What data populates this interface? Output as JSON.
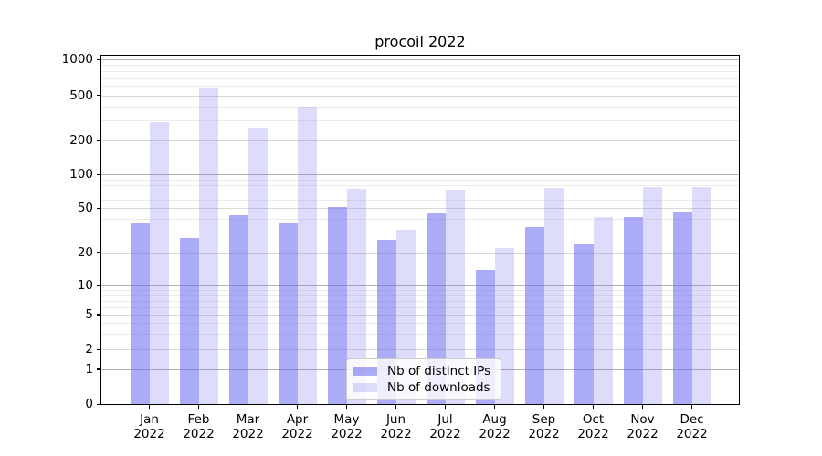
{
  "chart_data": {
    "type": "bar",
    "title": "procoil 2022",
    "categories": [
      "Jan",
      "Feb",
      "Mar",
      "Apr",
      "May",
      "Jun",
      "Jul",
      "Aug",
      "Sep",
      "Oct",
      "Nov",
      "Dec"
    ],
    "year": "2022",
    "series": [
      {
        "name": "Nb of distinct IPs",
        "fill": "rgba(102,102,238,0.55)",
        "solid_hex": "#aaaaf5",
        "values": [
          37,
          27,
          43,
          37,
          51,
          26,
          45,
          14,
          34,
          24,
          42,
          46
        ]
      },
      {
        "name": "Nb of downloads",
        "fill": "rgba(102,102,238,0.22)",
        "solid_hex": "#dcdcfa",
        "values": [
          290,
          580,
          260,
          400,
          75,
          32,
          73,
          22,
          76,
          42,
          78,
          78
        ]
      }
    ],
    "yscale": "symlog",
    "ytick_values": [
      0,
      1,
      2,
      5,
      10,
      20,
      50,
      100,
      200,
      500,
      1000
    ],
    "minor_gridline_values": [
      3,
      4,
      6,
      7,
      8,
      9,
      30,
      40,
      60,
      70,
      80,
      90,
      300,
      400,
      600,
      700,
      800,
      900
    ],
    "ylim": [
      0,
      1000
    ],
    "grid": true,
    "legend_position": "lower center",
    "colors": {
      "bar_base": "#6666ee",
      "gridline_major": "#b2b2b2",
      "gridline_labeled_minor": "#d9d9d9",
      "gridline_minor": "#ececec",
      "axis": "#000000",
      "legend_border": "#cccccc"
    }
  }
}
